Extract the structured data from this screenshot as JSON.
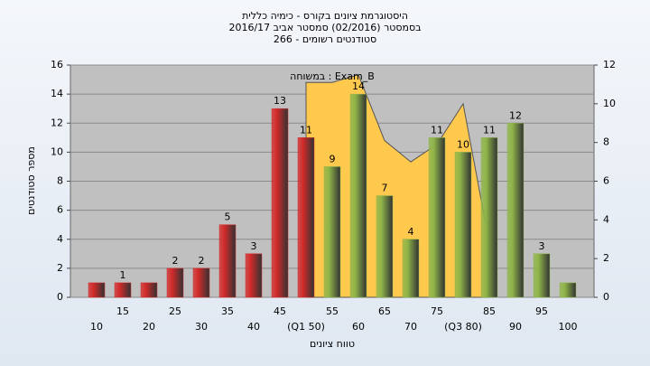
{
  "chart_data": {
    "type": "bar",
    "title": [
      "היסטוגרמת ציונים בקורס - כימיה כללית",
      "בסמסטר  (02/2016)  סמסטר אביב 2016/17",
      "סטודנטים רשומים - 266"
    ],
    "y_label": "מספר סטודנטים",
    "x_label": "טווח ציונים",
    "categories": [
      "10",
      "15",
      "20",
      "25",
      "30",
      "35",
      "40",
      "45",
      "(Q1 50)",
      "55",
      "60",
      "65",
      "70",
      "75",
      "(Q3 80)",
      "85",
      "90",
      "95",
      "100"
    ],
    "series": [
      {
        "values": [
          1,
          1,
          1,
          2,
          2,
          5,
          3,
          13,
          11,
          9,
          14,
          7,
          4,
          11,
          10,
          11,
          12,
          3,
          1
        ],
        "value_labels": [
          null,
          "1",
          null,
          "2",
          "2",
          "5",
          "3",
          "13",
          "11",
          "9",
          "14",
          "7",
          "4",
          "11",
          "10",
          "11",
          "12",
          "3",
          null
        ],
        "colors": [
          "#d42a2a",
          "#d42a2a",
          "#d42a2a",
          "#d42a2a",
          "#d42a2a",
          "#d42a2a",
          "#d42a2a",
          "#d42a2a",
          "#d42a2a",
          "#8fb548",
          "#8fb548",
          "#8fb548",
          "#8fb548",
          "#8fb548",
          "#8fb548",
          "#8fb548",
          "#8fb548",
          "#8fb548",
          "#8fb548"
        ]
      },
      {
        "name": "במשוחה : Exam_B",
        "axis": "y2",
        "type": "area",
        "color": "#ffc94d",
        "values": [
          null,
          null,
          null,
          null,
          null,
          null,
          null,
          null,
          11.1,
          11.1,
          11.5,
          8.1,
          7.0,
          7.9,
          10.0,
          2.8,
          null,
          null,
          null
        ]
      }
    ],
    "ylim": [
      0,
      16
    ],
    "yticks": [
      0,
      2,
      4,
      6,
      8,
      10,
      12,
      14,
      16
    ],
    "y2lim": [
      0,
      12
    ],
    "y2ticks": [
      0,
      2,
      4,
      6,
      8,
      10,
      12
    ],
    "grid": true
  }
}
